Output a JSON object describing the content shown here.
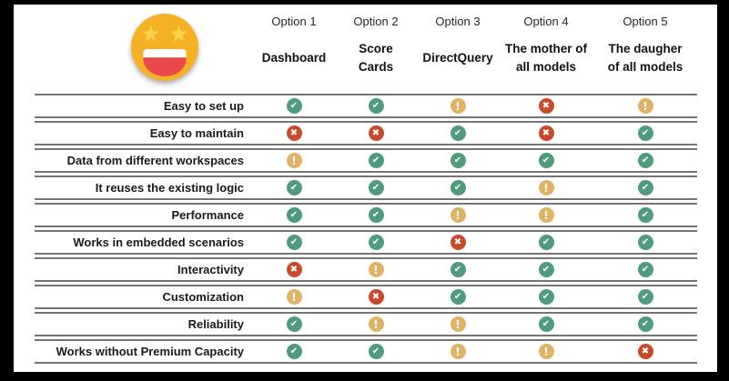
{
  "slide": {
    "background_color": "#ffffff",
    "frame_color": "#000000",
    "line_color": "#757575"
  },
  "emoji": {
    "name": "star-struck-face",
    "face_color": "#F4B126",
    "star_color": "#F8D24B",
    "teeth_color": "#ffffff",
    "mouth_color": "#E8484A"
  },
  "status": {
    "yes": {
      "icon": "check-circle-icon",
      "glyph": "✔",
      "color": "#4E9C7D"
    },
    "no": {
      "icon": "cross-circle-icon",
      "glyph": "✖",
      "color": "#C94A2B"
    },
    "partial": {
      "icon": "exclamation-circle-icon",
      "glyph": "!",
      "color": "#E1B264"
    }
  },
  "chart_data": {
    "type": "table",
    "title": "",
    "columns": [
      {
        "option": "Option 1",
        "name": "Dashboard"
      },
      {
        "option": "Option 2",
        "name": "Score\nCards"
      },
      {
        "option": "Option 3",
        "name": "DirectQuery"
      },
      {
        "option": "Option 4",
        "name": "The mother of\nall models"
      },
      {
        "option": "Option 5",
        "name": "The daugher\nof all models"
      }
    ],
    "rows": [
      {
        "label": "Easy to set up",
        "values": [
          "yes",
          "yes",
          "partial",
          "no",
          "partial"
        ]
      },
      {
        "label": "Easy to maintain",
        "values": [
          "no",
          "no",
          "yes",
          "no",
          "yes"
        ]
      },
      {
        "label": "Data from different workspaces",
        "values": [
          "partial",
          "yes",
          "yes",
          "yes",
          "yes"
        ]
      },
      {
        "label": "It reuses the existing logic",
        "values": [
          "yes",
          "yes",
          "yes",
          "partial",
          "yes"
        ]
      },
      {
        "label": "Performance",
        "values": [
          "yes",
          "yes",
          "partial",
          "partial",
          "yes"
        ]
      },
      {
        "label": "Works in embedded scenarios",
        "values": [
          "yes",
          "yes",
          "no",
          "yes",
          "yes"
        ]
      },
      {
        "label": "Interactivity",
        "values": [
          "no",
          "partial",
          "yes",
          "yes",
          "yes"
        ]
      },
      {
        "label": "Customization",
        "values": [
          "partial",
          "no",
          "yes",
          "yes",
          "yes"
        ]
      },
      {
        "label": "Reliability",
        "values": [
          "yes",
          "partial",
          "partial",
          "yes",
          "yes"
        ]
      },
      {
        "label": "Works without Premium Capacity",
        "values": [
          "yes",
          "yes",
          "partial",
          "partial",
          "no"
        ]
      }
    ],
    "value_legend": "yes = green check circle, no = red cross circle, partial = amber exclamation circle"
  }
}
